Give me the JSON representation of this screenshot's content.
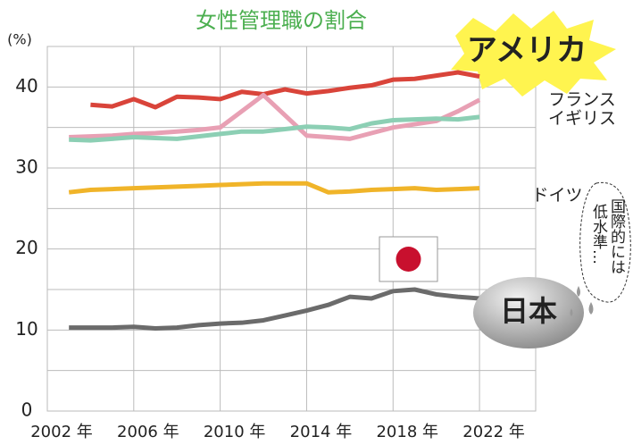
{
  "chart_data": {
    "type": "line",
    "title": "女性管理職の割合",
    "y_label": "(%)",
    "x": [
      2003,
      2004,
      2005,
      2006,
      2007,
      2008,
      2009,
      2010,
      2011,
      2012,
      2013,
      2014,
      2015,
      2016,
      2017,
      2018,
      2019,
      2020,
      2021,
      2022
    ],
    "series": [
      {
        "name": "アメリカ",
        "color": "#d9443a",
        "values": [
          null,
          37.8,
          37.6,
          38.5,
          37.5,
          38.8,
          38.7,
          38.5,
          39.4,
          39.1,
          39.7,
          39.2,
          39.5,
          39.9,
          40.2,
          40.9,
          41.0,
          41.4,
          41.8,
          41.3
        ]
      },
      {
        "name": "フランス",
        "color": "#e8a0b4",
        "values": [
          33.8,
          33.9,
          34.0,
          34.2,
          34.3,
          34.5,
          34.7,
          35.0,
          37.0,
          39.0,
          36.5,
          34.0,
          33.8,
          33.6,
          34.3,
          35.0,
          35.4,
          35.8,
          37.0,
          38.4
        ]
      },
      {
        "name": "イギリス",
        "color": "#8ccfb4",
        "values": [
          33.5,
          33.4,
          33.6,
          33.8,
          33.7,
          33.6,
          33.9,
          34.2,
          34.5,
          34.5,
          34.8,
          35.1,
          35.0,
          34.8,
          35.5,
          35.9,
          36.0,
          36.1,
          36.0,
          36.3
        ]
      },
      {
        "name": "ドイツ",
        "color": "#f0b429",
        "values": [
          27.0,
          27.3,
          27.4,
          27.5,
          27.6,
          27.7,
          27.8,
          27.9,
          28.0,
          28.1,
          28.1,
          28.1,
          27.0,
          27.1,
          27.3,
          27.4,
          27.5,
          27.3,
          27.4,
          27.5
        ]
      },
      {
        "name": "日本",
        "color": "#6b6b6b",
        "values": [
          10.3,
          10.3,
          10.3,
          10.4,
          10.2,
          10.3,
          10.6,
          10.8,
          10.9,
          11.2,
          11.8,
          12.4,
          13.1,
          14.1,
          13.9,
          14.8,
          15.0,
          14.4,
          14.1,
          13.9
        ]
      }
    ],
    "annotations": [
      "国際的には",
      "低水準…"
    ],
    "xlim": [
      2002,
      2024.6
    ],
    "xticks": [
      {
        "value": 2002,
        "label": "2002 年"
      },
      {
        "value": 2006,
        "label": "2006 年"
      },
      {
        "value": 2010,
        "label": "2010 年"
      },
      {
        "value": 2014,
        "label": "2014 年"
      },
      {
        "value": 2018,
        "label": "2018 年"
      },
      {
        "value": 2022,
        "label": "2022 年"
      }
    ],
    "ylim": [
      0,
      45
    ],
    "yticks": [
      0,
      10,
      20,
      30,
      40
    ],
    "minor_yticks": [
      5,
      15,
      25,
      35
    ],
    "grid": true
  }
}
